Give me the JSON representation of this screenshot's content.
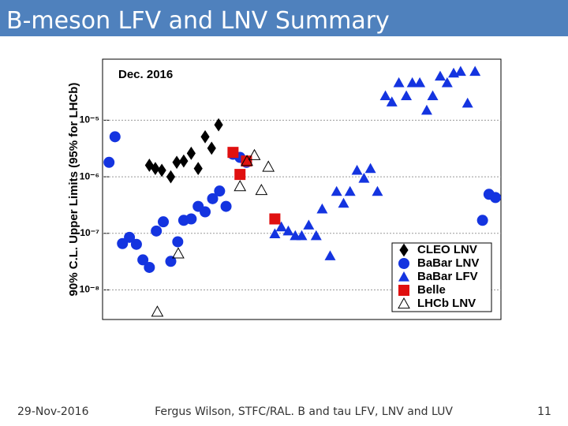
{
  "slide": {
    "title": "B-meson LFV and LNV Summary",
    "footer_date": "29-Nov-2016",
    "footer_author": "Fergus Wilson, STFC/RAL. B and tau LFV, LNV and LUV",
    "page_number": "11"
  },
  "chart_data": {
    "type": "scatter",
    "annotation": "Dec. 2016",
    "y_label": "90% C.L. Upper Limits (95% for LHCb)",
    "log_y": true,
    "xlim": [
      0,
      80
    ],
    "ylim": [
      3e-09,
      0.00012
    ],
    "yticks": [
      {
        "value": 1e-08,
        "label": "10⁻⁸"
      },
      {
        "value": 1e-07,
        "label": "10⁻⁷"
      },
      {
        "value": 1e-06,
        "label": "10⁻⁶"
      },
      {
        "value": 1e-05,
        "label": "10⁻⁵"
      }
    ],
    "grid": true,
    "legend": "bottom-right",
    "series": [
      {
        "name": "CLEO LNV",
        "marker": "diamond",
        "color": "#000000",
        "x": [
          9.4,
          10.6,
          11.9,
          13.7,
          14.9,
          16.3,
          17.8,
          19.2,
          20.6,
          21.9,
          23.3
        ],
        "values": [
          1.6e-06,
          1.4e-06,
          1.3e-06,
          1e-06,
          1.8e-06,
          1.9e-06,
          2.6e-06,
          1.4e-06,
          5.1e-06,
          3.2e-06,
          8.3e-06
        ]
      },
      {
        "name": "BaBar LNV",
        "marker": "circle",
        "color": "#1434e0",
        "x": [
          1.3,
          2.5,
          4.0,
          5.4,
          6.8,
          8.1,
          9.4,
          10.8,
          12.2,
          13.7,
          15.1,
          16.3,
          17.8,
          19.2,
          20.6,
          22.1,
          23.5,
          24.8,
          26.2,
          27.6,
          28.9,
          76.3,
          77.6,
          78.9
        ],
        "values": [
          1.8e-06,
          5.1e-06,
          6.6e-08,
          8.5e-08,
          6.4e-08,
          3.4e-08,
          2.5e-08,
          1.1e-07,
          1.6e-07,
          3.2e-08,
          7.1e-08,
          1.7e-07,
          1.8e-07,
          3e-07,
          2.4e-07,
          4.1e-07,
          5.6e-07,
          3e-07,
          2.5e-06,
          2.2e-06,
          1.8e-06,
          1.7e-07,
          4.9e-07,
          4.3e-07
        ]
      },
      {
        "name": "BaBar LFV",
        "marker": "triangle",
        "color": "#1434e0",
        "x": [
          34.6,
          35.9,
          37.3,
          38.7,
          40.0,
          41.4,
          42.9,
          44.1,
          45.7,
          47.0,
          48.4,
          49.7,
          51.1,
          52.5,
          53.8,
          55.2,
          56.8,
          58.1,
          59.5,
          61.0,
          62.2,
          63.7,
          65.1,
          66.3,
          67.8,
          69.2,
          70.5,
          71.9,
          73.3,
          74.8
        ],
        "values": [
          9.8e-08,
          1.3e-07,
          1.1e-07,
          9.1e-08,
          9.1e-08,
          1.4e-07,
          9.1e-08,
          2.7e-07,
          4e-08,
          5.5e-07,
          3.4e-07,
          5.5e-07,
          1.3e-06,
          9.4e-07,
          1.4e-06,
          5.5e-07,
          2.7e-05,
          2.1e-05,
          4.6e-05,
          2.7e-05,
          4.6e-05,
          4.6e-05,
          1.5e-05,
          2.7e-05,
          6e-05,
          4.6e-05,
          6.8e-05,
          7.3e-05,
          2e-05,
          7.3e-05
        ]
      },
      {
        "name": "Belle",
        "marker": "square",
        "color": "#e01010",
        "x": [
          26.2,
          27.6,
          28.9,
          34.6
        ],
        "values": [
          2.7e-06,
          1.1e-06,
          1.9e-06,
          1.8e-07
        ]
      },
      {
        "name": "LHCb LNV",
        "marker": "open-triangle",
        "color": "#000000",
        "x": [
          11.0,
          15.2,
          27.6,
          29.0,
          30.5,
          31.9,
          33.3
        ],
        "values": [
          4.1e-09,
          4.4e-08,
          6.8e-07,
          1.9e-06,
          2.4e-06,
          5.8e-07,
          1.5e-06
        ]
      }
    ]
  }
}
